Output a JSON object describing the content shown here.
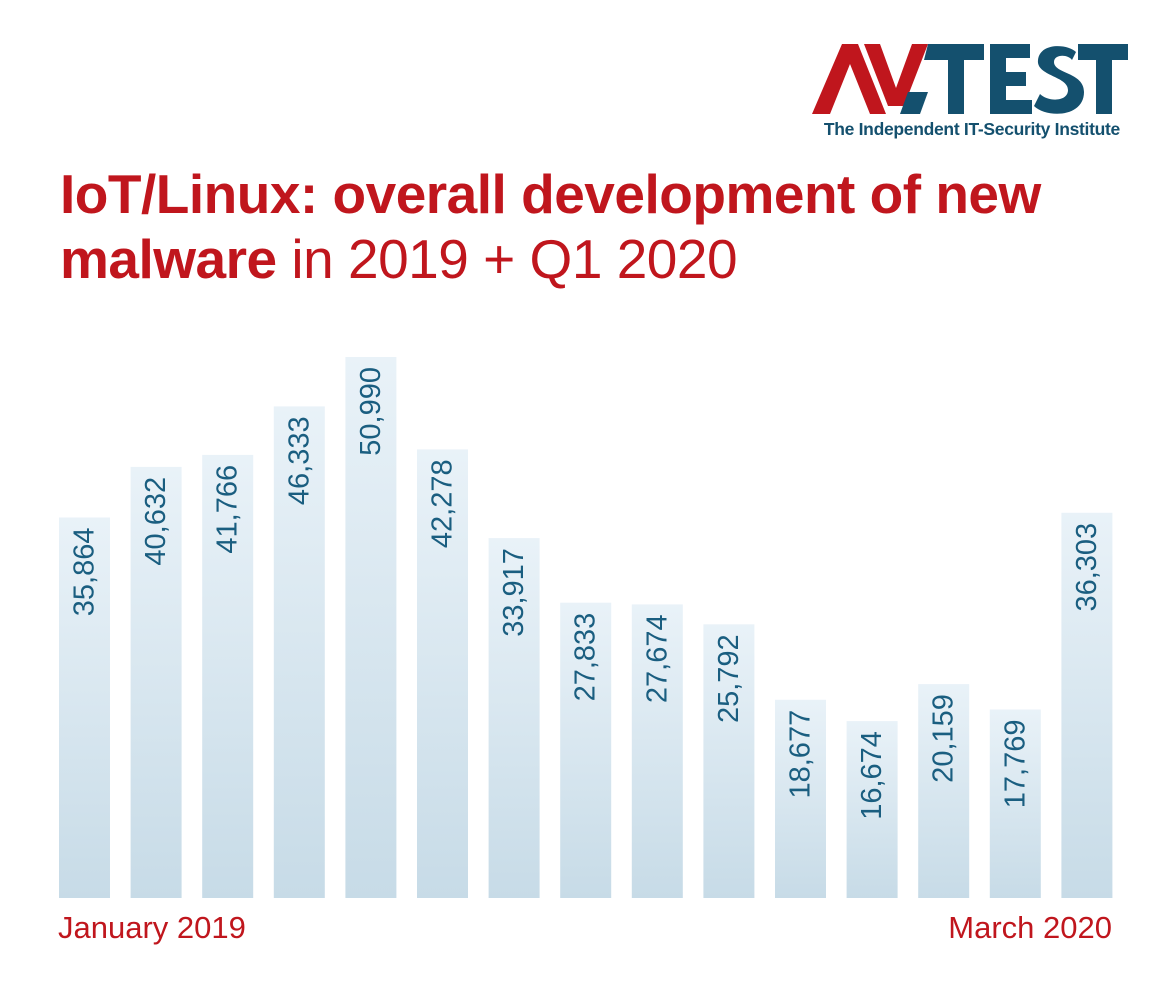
{
  "logo": {
    "brand": "AV-TEST",
    "tagline": "The Independent IT-Security Institute",
    "colors": {
      "red": "#c0161d",
      "blue": "#14506e"
    }
  },
  "title": {
    "bold": "IoT/Linux: overall development of new malware",
    "regular": " in 2019 + Q1 2020"
  },
  "chart_data": {
    "type": "bar",
    "categories": [
      "January 2019",
      "",
      "",
      "",
      "",
      "",
      "",
      "",
      "",
      "",
      "",
      "",
      "",
      "",
      "March 2020"
    ],
    "values": [
      35864,
      40632,
      41766,
      46333,
      50990,
      42278,
      33917,
      27833,
      27674,
      25792,
      18677,
      16674,
      20159,
      17769,
      36303
    ],
    "labels": [
      "35,864",
      "40,632",
      "41,766",
      "46,333",
      "50,990",
      "42,278",
      "33,917",
      "27,833",
      "27,674",
      "25,792",
      "18,677",
      "16,674",
      "20,159",
      "17,769",
      "36,303"
    ],
    "x_start_label": "January 2019",
    "x_end_label": "March 2020",
    "ylim": [
      0,
      50990
    ],
    "grid": false,
    "legend": "none",
    "bar_gradient": {
      "top": "#e9f2f8",
      "bottom": "#c7dbe7"
    },
    "label_color": "#1a5e80"
  }
}
